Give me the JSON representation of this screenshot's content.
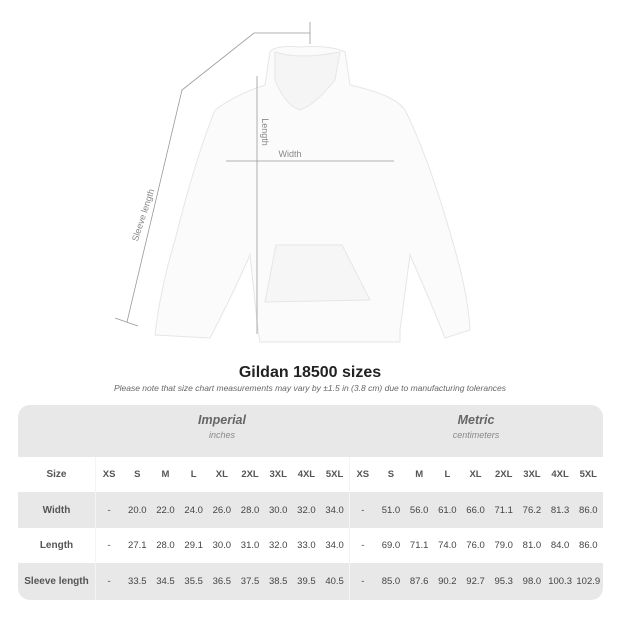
{
  "diagram": {
    "labels": {
      "sleeve": "Sleeve length",
      "length": "Length",
      "width": "Width"
    }
  },
  "title": "Gildan 18500 sizes",
  "note": "Please note that size chart measurements may vary by ±1.5 in (3.8 cm) due to manufacturing tolerances",
  "table": {
    "imperial": {
      "name": "Imperial",
      "unit": "inches"
    },
    "metric": {
      "name": "Metric",
      "unit": "centimeters"
    },
    "size_label": "Size",
    "sizes": [
      "XS",
      "S",
      "M",
      "L",
      "XL",
      "2XL",
      "3XL",
      "4XL",
      "5XL"
    ],
    "rows": [
      {
        "label": "Width",
        "imperial": [
          "-",
          "20.0",
          "22.0",
          "24.0",
          "26.0",
          "28.0",
          "30.0",
          "32.0",
          "34.0"
        ],
        "metric": [
          "-",
          "51.0",
          "56.0",
          "61.0",
          "66.0",
          "71.1",
          "76.2",
          "81.3",
          "86.0"
        ]
      },
      {
        "label": "Length",
        "imperial": [
          "-",
          "27.1",
          "28.0",
          "29.1",
          "30.0",
          "31.0",
          "32.0",
          "33.0",
          "34.0"
        ],
        "metric": [
          "-",
          "69.0",
          "71.1",
          "74.0",
          "76.0",
          "79.0",
          "81.0",
          "84.0",
          "86.0"
        ]
      },
      {
        "label": "Sleeve length",
        "imperial": [
          "-",
          "33.5",
          "34.5",
          "35.5",
          "36.5",
          "37.5",
          "38.5",
          "39.5",
          "40.5"
        ],
        "metric": [
          "-",
          "85.0",
          "87.6",
          "90.2",
          "92.7",
          "95.3",
          "98.0",
          "100.3",
          "102.9"
        ]
      }
    ]
  }
}
